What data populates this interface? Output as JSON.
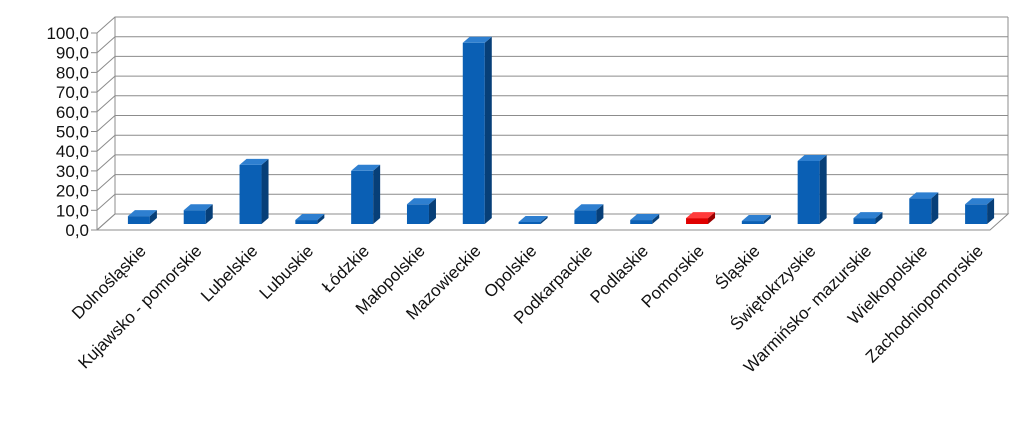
{
  "chart_data": {
    "type": "bar",
    "title": "",
    "xlabel": "",
    "ylabel": "",
    "ylim": [
      0,
      100
    ],
    "yticks": [
      "0,0",
      "10,0",
      "20,0",
      "30,0",
      "40,0",
      "50,0",
      "60,0",
      "70,0",
      "80,0",
      "90,0",
      "100,0"
    ],
    "grid": true,
    "legend": "none",
    "categories": [
      "Dolnośląskie",
      "Kujawsko - pomorskie",
      "Lubelskie",
      "Lubuskie",
      "Łódzkie",
      "Małopolskie",
      "Mazowieckie",
      "Opolskie",
      "Podkarpackie",
      "Podlaskie",
      "Pomorskie",
      "Śląskie",
      "Świętokrzyskie",
      "Warmińsko- mazurskie",
      "Wielkopolskie",
      "Zachodniopomorskie"
    ],
    "values": [
      4,
      7,
      30,
      2,
      27,
      10,
      92,
      1,
      7,
      2,
      3,
      1.5,
      32,
      3,
      13,
      10
    ],
    "colors": {
      "bar": "#0a5fb4",
      "bar_side": "#073f78",
      "bar_top": "#2e7fd0",
      "highlight": "#e00000",
      "highlight_side": "#9a0000",
      "highlight_top": "#ff3b3b"
    },
    "highlight_category": "Pomorskie"
  }
}
